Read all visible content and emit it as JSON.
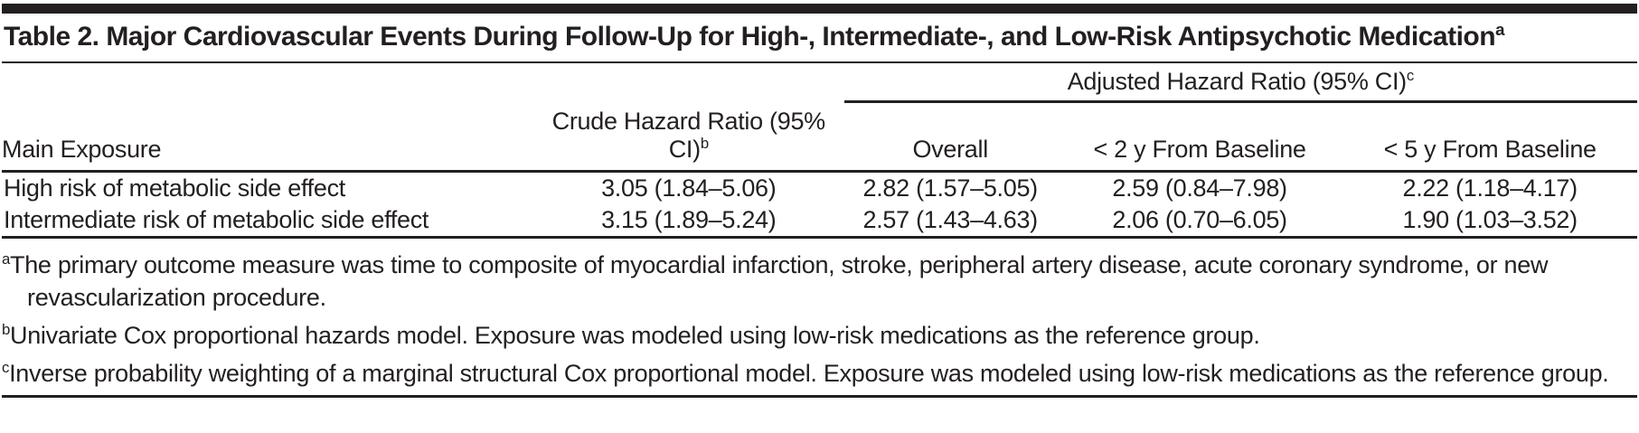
{
  "table": {
    "title": {
      "text": "Table 2. Major Cardiovascular Events During Follow-Up for High-, Intermediate-, and Low-Risk Antipsychotic Medication",
      "marker": "a"
    },
    "spanner": {
      "label": "Adjusted Hazard Ratio (95% CI)",
      "marker": "c"
    },
    "columns": {
      "main_exposure": "Main Exposure",
      "crude": {
        "label": "Crude Hazard Ratio (95% CI)",
        "marker": "b"
      },
      "overall": "Overall",
      "lt2y": "< 2 y From Baseline",
      "lt5y": "< 5 y From Baseline"
    },
    "rows": [
      {
        "exposure": "High risk of metabolic side effect",
        "crude": "3.05 (1.84–5.06)",
        "overall": "2.82 (1.57–5.05)",
        "lt2y": "2.59 (0.84–7.98)",
        "lt5y": "2.22 (1.18–4.17)"
      },
      {
        "exposure": "Intermediate risk of metabolic side effect",
        "crude": "3.15 (1.89–5.24)",
        "overall": "2.57 (1.43–4.63)",
        "lt2y": "2.06 (0.70–6.05)",
        "lt5y": "1.90 (1.03–3.52)"
      }
    ],
    "footnotes": [
      {
        "marker": "a",
        "text": "The primary outcome measure was time to composite of myocardial infarction, stroke, peripheral artery disease, acute coronary syndrome, or new revascularization procedure."
      },
      {
        "marker": "b",
        "text": "Univariate Cox proportional hazards model. Exposure was modeled using low-risk medications as the reference group."
      },
      {
        "marker": "c",
        "text": "Inverse probability weighting of a marginal structural Cox proportional model. Exposure was modeled using low-risk medications as the reference group."
      }
    ]
  },
  "colors": {
    "text": "#231f20",
    "rule": "#231f20",
    "background": "#ffffff"
  }
}
